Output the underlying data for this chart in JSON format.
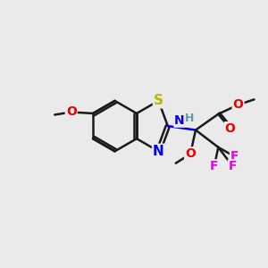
{
  "bg_color": "#eaeaea",
  "bond_color": "#1a1a1a",
  "bond_width": 1.8,
  "atom_colors": {
    "S": "#b8b800",
    "N": "#0000ee",
    "O": "#ee0000",
    "F": "#ee00ee",
    "H": "#5f9ea0",
    "C": "#1a1a1a"
  },
  "font_size": 9.5
}
